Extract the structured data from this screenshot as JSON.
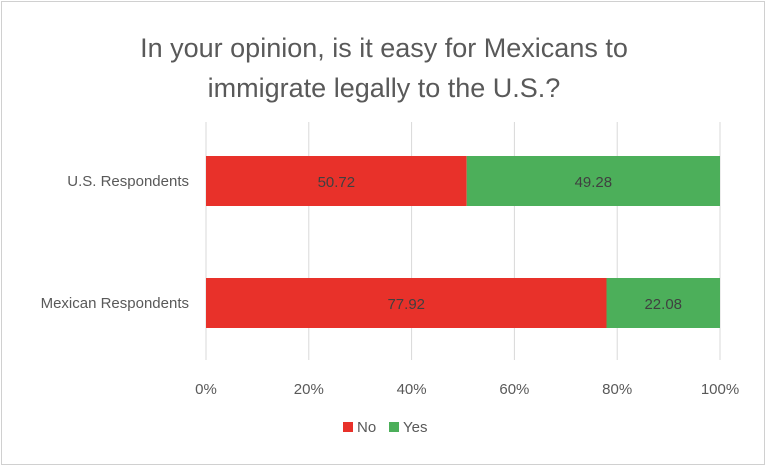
{
  "chart_data": {
    "type": "bar",
    "orientation": "horizontal",
    "stacked": "percent",
    "title": "In your opinion, is it easy for Mexicans to\nimmigrate legally to the U.S.?",
    "categories": [
      "U.S. Respondents",
      "Mexican Respondents"
    ],
    "series": [
      {
        "name": "No",
        "values": [
          50.72,
          77.92
        ],
        "color": "#E8312A"
      },
      {
        "name": "Yes",
        "values": [
          49.28,
          22.08
        ],
        "color": "#4CAF5A"
      }
    ],
    "xlim": [
      0,
      100
    ],
    "xticks": [
      "0%",
      "20%",
      "40%",
      "60%",
      "80%",
      "100%"
    ],
    "grid": "vertical",
    "legend": "bottom"
  }
}
